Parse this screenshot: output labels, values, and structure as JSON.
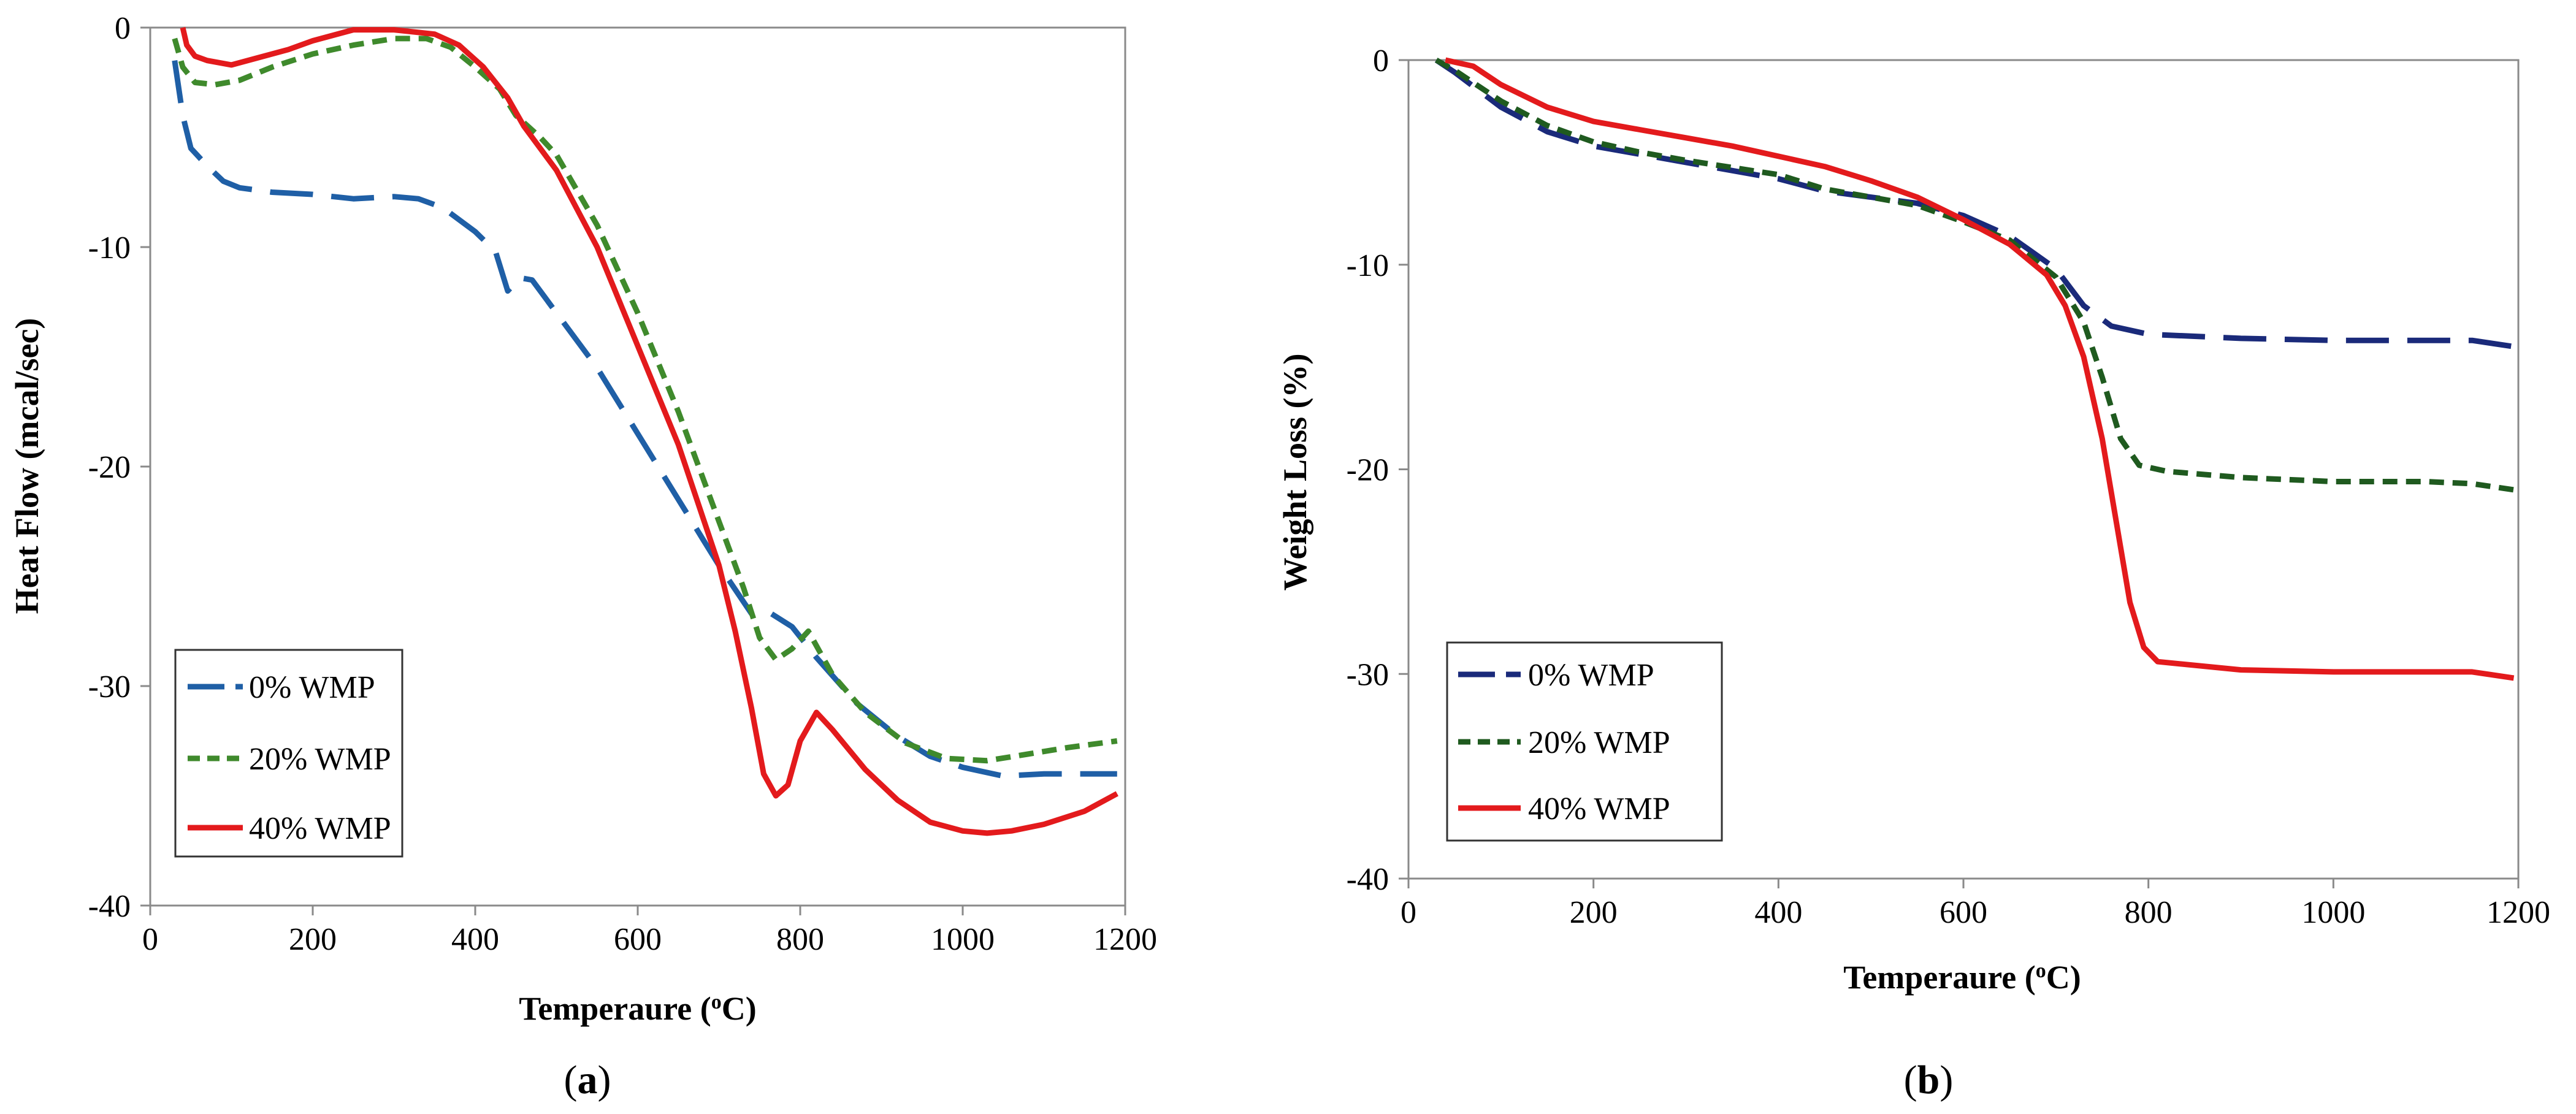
{
  "chart_data": [
    {
      "type": "line",
      "panel_label": "a",
      "xlabel": "Temperaure (",
      "xlabel_sup": "o",
      "xlabel_unit": "C)",
      "ylabel": "Heat Flow (mcal/sec)",
      "xlim": [
        0,
        1200
      ],
      "ylim": [
        -40,
        0
      ],
      "x_ticks": [
        "0",
        "200",
        "400",
        "600",
        "800",
        "1000",
        "1200"
      ],
      "y_ticks": [
        "0",
        "-10",
        "-20",
        "-30",
        "-40"
      ],
      "x_tick_values": [
        0,
        200,
        400,
        600,
        800,
        1000,
        1200
      ],
      "y_tick_values": [
        0,
        -10,
        -20,
        -30,
        -40
      ],
      "grid": false,
      "legend_position": "bottom-left",
      "series": [
        {
          "name": "0% WMP",
          "color": "#1f5fa6",
          "style": "long-dash",
          "points": [
            [
              30,
              -1.5
            ],
            [
              40,
              -4
            ],
            [
              50,
              -5.5
            ],
            [
              70,
              -6.3
            ],
            [
              90,
              -7
            ],
            [
              110,
              -7.3
            ],
            [
              150,
              -7.5
            ],
            [
              200,
              -7.6
            ],
            [
              250,
              -7.8
            ],
            [
              300,
              -7.7
            ],
            [
              330,
              -7.8
            ],
            [
              360,
              -8.2
            ],
            [
              400,
              -9.3
            ],
            [
              425,
              -10.2
            ],
            [
              440,
              -12
            ],
            [
              455,
              -11.4
            ],
            [
              470,
              -11.5
            ],
            [
              500,
              -13
            ],
            [
              550,
              -15.5
            ],
            [
              600,
              -18.5
            ],
            [
              650,
              -21.5
            ],
            [
              700,
              -24.5
            ],
            [
              740,
              -26.7
            ],
            [
              760,
              -26.6
            ],
            [
              790,
              -27.3
            ],
            [
              820,
              -28.7
            ],
            [
              870,
              -30.8
            ],
            [
              920,
              -32.3
            ],
            [
              960,
              -33.2
            ],
            [
              1000,
              -33.7
            ],
            [
              1050,
              -34.1
            ],
            [
              1100,
              -34.0
            ],
            [
              1150,
              -34.0
            ],
            [
              1190,
              -34.0
            ]
          ]
        },
        {
          "name": "20% WMP",
          "color": "#3f8a2c",
          "style": "short-dash",
          "points": [
            [
              30,
              -0.5
            ],
            [
              40,
              -1.8
            ],
            [
              55,
              -2.5
            ],
            [
              80,
              -2.6
            ],
            [
              110,
              -2.4
            ],
            [
              150,
              -1.8
            ],
            [
              200,
              -1.2
            ],
            [
              250,
              -0.8
            ],
            [
              300,
              -0.5
            ],
            [
              340,
              -0.5
            ],
            [
              370,
              -0.9
            ],
            [
              400,
              -1.8
            ],
            [
              430,
              -2.8
            ],
            [
              450,
              -4
            ],
            [
              480,
              -5
            ],
            [
              500,
              -5.8
            ],
            [
              550,
              -9
            ],
            [
              600,
              -13
            ],
            [
              650,
              -17.5
            ],
            [
              700,
              -22.5
            ],
            [
              730,
              -25.5
            ],
            [
              750,
              -27.8
            ],
            [
              770,
              -28.8
            ],
            [
              790,
              -28.3
            ],
            [
              810,
              -27.5
            ],
            [
              840,
              -29.5
            ],
            [
              880,
              -31.2
            ],
            [
              930,
              -32.6
            ],
            [
              980,
              -33.3
            ],
            [
              1030,
              -33.4
            ],
            [
              1080,
              -33.1
            ],
            [
              1130,
              -32.8
            ],
            [
              1190,
              -32.5
            ]
          ]
        },
        {
          "name": "40% WMP",
          "color": "#e31a1c",
          "style": "solid",
          "points": [
            [
              40,
              0
            ],
            [
              45,
              -0.8
            ],
            [
              55,
              -1.3
            ],
            [
              70,
              -1.5
            ],
            [
              100,
              -1.7
            ],
            [
              130,
              -1.4
            ],
            [
              170,
              -1
            ],
            [
              200,
              -0.6
            ],
            [
              250,
              -0.1
            ],
            [
              300,
              -0.1
            ],
            [
              350,
              -0.3
            ],
            [
              380,
              -0.8
            ],
            [
              410,
              -1.8
            ],
            [
              440,
              -3.2
            ],
            [
              460,
              -4.5
            ],
            [
              500,
              -6.5
            ],
            [
              550,
              -10
            ],
            [
              600,
              -14.5
            ],
            [
              650,
              -19
            ],
            [
              700,
              -24.5
            ],
            [
              720,
              -27.5
            ],
            [
              740,
              -31
            ],
            [
              755,
              -34
            ],
            [
              770,
              -35
            ],
            [
              785,
              -34.5
            ],
            [
              800,
              -32.5
            ],
            [
              820,
              -31.2
            ],
            [
              840,
              -32
            ],
            [
              880,
              -33.8
            ],
            [
              920,
              -35.2
            ],
            [
              960,
              -36.2
            ],
            [
              1000,
              -36.6
            ],
            [
              1030,
              -36.7
            ],
            [
              1060,
              -36.6
            ],
            [
              1100,
              -36.3
            ],
            [
              1150,
              -35.7
            ],
            [
              1190,
              -34.9
            ]
          ]
        }
      ]
    },
    {
      "type": "line",
      "panel_label": "b",
      "xlabel": "Temperaure (",
      "xlabel_sup": "o",
      "xlabel_unit": "C)",
      "ylabel": "Weight Loss (%)",
      "xlim": [
        0,
        1200
      ],
      "ylim": [
        -40,
        0
      ],
      "x_ticks": [
        "0",
        "200",
        "400",
        "600",
        "800",
        "1000",
        "1200"
      ],
      "y_ticks": [
        "0",
        "-10",
        "-20",
        "-30",
        "-40"
      ],
      "x_tick_values": [
        0,
        200,
        400,
        600,
        800,
        1000,
        1200
      ],
      "y_tick_values": [
        0,
        -10,
        -20,
        -30,
        -40
      ],
      "grid": false,
      "legend_position": "bottom-left",
      "series": [
        {
          "name": "0% WMP",
          "color": "#1a2a7a",
          "style": "long-dash",
          "points": [
            [
              30,
              0
            ],
            [
              50,
              -0.6
            ],
            [
              100,
              -2.3
            ],
            [
              150,
              -3.5
            ],
            [
              200,
              -4.2
            ],
            [
              250,
              -4.6
            ],
            [
              300,
              -5
            ],
            [
              400,
              -5.8
            ],
            [
              450,
              -6.4
            ],
            [
              500,
              -6.7
            ],
            [
              550,
              -7
            ],
            [
              600,
              -7.6
            ],
            [
              650,
              -8.6
            ],
            [
              700,
              -10.2
            ],
            [
              730,
              -12
            ],
            [
              760,
              -13
            ],
            [
              800,
              -13.4
            ],
            [
              900,
              -13.6
            ],
            [
              1000,
              -13.7
            ],
            [
              1100,
              -13.7
            ],
            [
              1150,
              -13.7
            ],
            [
              1195,
              -14
            ]
          ]
        },
        {
          "name": "20% WMP",
          "color": "#1f5a1f",
          "style": "short-dash",
          "points": [
            [
              30,
              0
            ],
            [
              50,
              -0.5
            ],
            [
              100,
              -2
            ],
            [
              150,
              -3.2
            ],
            [
              200,
              -4
            ],
            [
              250,
              -4.5
            ],
            [
              300,
              -4.9
            ],
            [
              400,
              -5.6
            ],
            [
              450,
              -6.3
            ],
            [
              500,
              -6.7
            ],
            [
              550,
              -7.1
            ],
            [
              600,
              -7.9
            ],
            [
              650,
              -8.8
            ],
            [
              700,
              -10.6
            ],
            [
              730,
              -12.8
            ],
            [
              750,
              -15.5
            ],
            [
              770,
              -18.5
            ],
            [
              790,
              -19.8
            ],
            [
              820,
              -20.1
            ],
            [
              900,
              -20.4
            ],
            [
              1000,
              -20.6
            ],
            [
              1100,
              -20.6
            ],
            [
              1150,
              -20.7
            ],
            [
              1195,
              -21
            ]
          ]
        },
        {
          "name": "40% WMP",
          "color": "#e31a1c",
          "style": "solid",
          "points": [
            [
              40,
              0
            ],
            [
              70,
              -0.3
            ],
            [
              100,
              -1.2
            ],
            [
              150,
              -2.3
            ],
            [
              200,
              -3
            ],
            [
              250,
              -3.4
            ],
            [
              300,
              -3.8
            ],
            [
              350,
              -4.2
            ],
            [
              400,
              -4.7
            ],
            [
              450,
              -5.2
            ],
            [
              500,
              -5.9
            ],
            [
              550,
              -6.7
            ],
            [
              600,
              -7.8
            ],
            [
              650,
              -9
            ],
            [
              690,
              -10.5
            ],
            [
              710,
              -12
            ],
            [
              730,
              -14.5
            ],
            [
              750,
              -18.5
            ],
            [
              765,
              -22.5
            ],
            [
              780,
              -26.5
            ],
            [
              795,
              -28.7
            ],
            [
              810,
              -29.4
            ],
            [
              900,
              -29.8
            ],
            [
              1000,
              -29.9
            ],
            [
              1100,
              -29.9
            ],
            [
              1150,
              -29.9
            ],
            [
              1195,
              -30.2
            ]
          ]
        }
      ]
    }
  ]
}
